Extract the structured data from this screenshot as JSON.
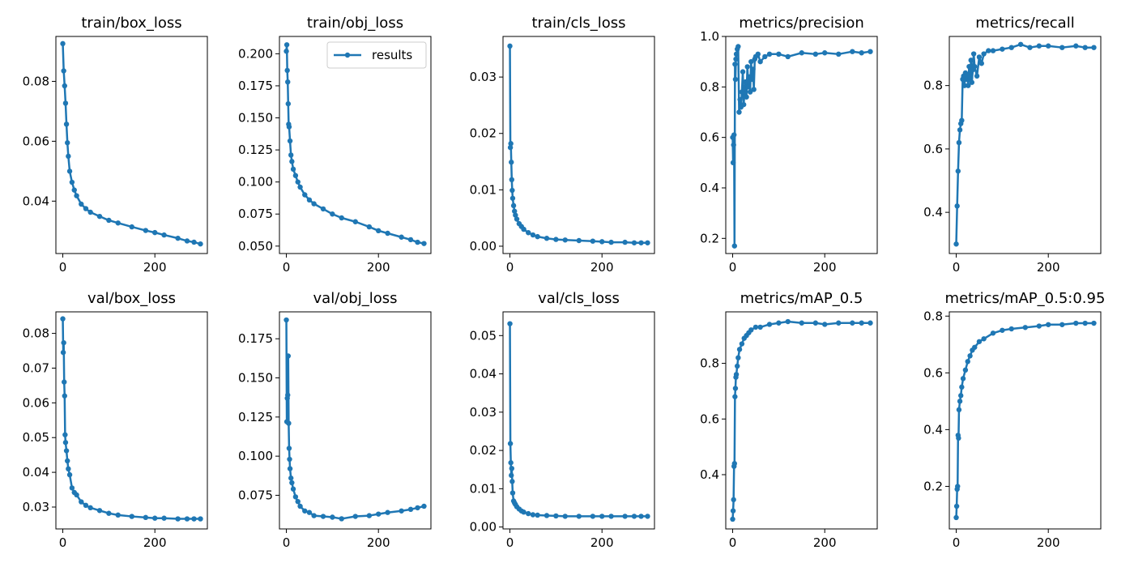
{
  "chart_data": {
    "type": "line",
    "series_color": "#1f77b4",
    "legend": {
      "label": "results",
      "placement": "upper-right",
      "panel_index": 1
    },
    "epochs_max": 299,
    "x_ticks": [
      0,
      200
    ],
    "xlim": [
      -15,
      314
    ],
    "panels": [
      {
        "title": "train/box_loss",
        "ylim": [
          0.0225,
          0.095
        ],
        "y_ticks": [
          0.04,
          0.06,
          0.08
        ],
        "y_tick_labels": [
          "0.04",
          "0.06",
          "0.08"
        ],
        "series": [
          {
            "name": "results",
            "x": [
              0,
              2,
              4,
              6,
              8,
              10,
              12,
              15,
              20,
              25,
              30,
              40,
              50,
              60,
              80,
              100,
              120,
              150,
              180,
              200,
              220,
              250,
              270,
              285,
              299
            ],
            "y": [
              0.0926,
              0.0835,
              0.0785,
              0.0727,
              0.0657,
              0.0595,
              0.055,
              0.05,
              0.0463,
              0.0437,
              0.0418,
              0.039,
              0.0375,
              0.0363,
              0.0349,
              0.0336,
              0.0327,
              0.0314,
              0.0302,
              0.0295,
              0.0287,
              0.0276,
              0.0267,
              0.0263,
              0.0257
            ]
          }
        ]
      },
      {
        "title": "train/obj_loss",
        "ylim": [
          0.0442,
          0.2135
        ],
        "y_ticks": [
          0.05,
          0.075,
          0.1,
          0.125,
          0.15,
          0.175,
          0.2
        ],
        "y_tick_labels": [
          "0.050",
          "0.075",
          "0.100",
          "0.125",
          "0.150",
          "0.175",
          "0.200"
        ],
        "series": [
          {
            "name": "results",
            "x": [
              0,
              1,
              2,
              3,
              4,
              5,
              6,
              8,
              10,
              12,
              15,
              20,
              25,
              30,
              40,
              50,
              60,
              80,
              100,
              120,
              150,
              180,
              200,
              220,
              250,
              270,
              285,
              299
            ],
            "y": [
              0.202,
              0.207,
              0.187,
              0.178,
              0.161,
              0.145,
              0.143,
              0.132,
              0.121,
              0.116,
              0.11,
              0.105,
              0.1,
              0.096,
              0.09,
              0.086,
              0.083,
              0.079,
              0.075,
              0.072,
              0.069,
              0.065,
              0.062,
              0.06,
              0.057,
              0.055,
              0.053,
              0.052
            ]
          }
        ]
      },
      {
        "title": "train/cls_loss",
        "ylim": [
          -0.0013,
          0.0372
        ],
        "y_ticks": [
          0.0,
          0.01,
          0.02,
          0.03
        ],
        "y_tick_labels": [
          "0.00",
          "0.01",
          "0.02",
          "0.03"
        ],
        "series": [
          {
            "name": "results",
            "x": [
              0,
              1,
              2,
              3,
              4,
              5,
              6,
              8,
              10,
              12,
              15,
              20,
              25,
              30,
              40,
              50,
              60,
              80,
              100,
              120,
              150,
              180,
              200,
              220,
              250,
              270,
              285,
              299
            ],
            "y": [
              0.0355,
              0.0175,
              0.0182,
              0.0149,
              0.0118,
              0.0099,
              0.0085,
              0.0072,
              0.0062,
              0.0055,
              0.0048,
              0.004,
              0.0035,
              0.003,
              0.0024,
              0.002,
              0.0017,
              0.0014,
              0.0012,
              0.0011,
              0.001,
              0.0009,
              0.0008,
              0.0007,
              0.0007,
              0.0006,
              0.0006,
              0.0006
            ]
          }
        ]
      },
      {
        "title": "metrics/precision",
        "ylim": [
          0.14,
          1.0
        ],
        "y_ticks": [
          0.2,
          0.4,
          0.6,
          0.8,
          1.0
        ],
        "y_tick_labels": [
          "0.2",
          "0.4",
          "0.6",
          "0.8",
          "1.0"
        ],
        "series": [
          {
            "name": "results",
            "x": [
              0,
              1,
              2,
              3,
              4,
              5,
              6,
              7,
              8,
              10,
              12,
              14,
              16,
              18,
              20,
              22,
              24,
              26,
              28,
              30,
              32,
              34,
              36,
              38,
              40,
              42,
              44,
              46,
              48,
              50,
              55,
              60,
              70,
              80,
              100,
              120,
              150,
              180,
              200,
              230,
              260,
              280,
              299
            ],
            "y": [
              0.6,
              0.5,
              0.57,
              0.61,
              0.17,
              0.89,
              0.83,
              0.91,
              0.93,
              0.95,
              0.96,
              0.7,
              0.75,
              0.72,
              0.78,
              0.86,
              0.73,
              0.79,
              0.82,
              0.76,
              0.88,
              0.8,
              0.84,
              0.78,
              0.9,
              0.83,
              0.87,
              0.79,
              0.91,
              0.92,
              0.93,
              0.9,
              0.92,
              0.93,
              0.93,
              0.92,
              0.935,
              0.93,
              0.935,
              0.93,
              0.94,
              0.935,
              0.94
            ]
          }
        ]
      },
      {
        "title": "metrics/recall",
        "ylim": [
          0.27,
          0.955
        ],
        "y_ticks": [
          0.4,
          0.6,
          0.8
        ],
        "y_tick_labels": [
          "0.4",
          "0.6",
          "0.8"
        ],
        "series": [
          {
            "name": "results",
            "x": [
              0,
              2,
              4,
              6,
              8,
              10,
              12,
              14,
              16,
              18,
              20,
              22,
              24,
              26,
              28,
              30,
              32,
              34,
              36,
              38,
              40,
              45,
              50,
              55,
              60,
              70,
              80,
              100,
              120,
              140,
              160,
              180,
              200,
              230,
              260,
              280,
              299
            ],
            "y": [
              0.3,
              0.42,
              0.53,
              0.62,
              0.66,
              0.68,
              0.69,
              0.82,
              0.83,
              0.8,
              0.84,
              0.82,
              0.83,
              0.8,
              0.86,
              0.82,
              0.88,
              0.81,
              0.85,
              0.9,
              0.86,
              0.83,
              0.89,
              0.87,
              0.9,
              0.91,
              0.91,
              0.915,
              0.92,
              0.93,
              0.92,
              0.925,
              0.925,
              0.92,
              0.925,
              0.92,
              0.92
            ]
          }
        ]
      },
      {
        "title": "val/box_loss",
        "ylim": [
          0.0237,
          0.0862
        ],
        "y_ticks": [
          0.03,
          0.04,
          0.05,
          0.06,
          0.07,
          0.08
        ],
        "y_tick_labels": [
          "0.03",
          "0.04",
          "0.05",
          "0.06",
          "0.07",
          "0.08"
        ],
        "series": [
          {
            "name": "results",
            "x": [
              0,
              1,
              2,
              3,
              4,
              5,
              6,
              8,
              10,
              12,
              15,
              20,
              25,
              30,
              40,
              50,
              60,
              80,
              100,
              120,
              150,
              180,
              200,
              220,
              250,
              270,
              285,
              299
            ],
            "y": [
              0.0842,
              0.0745,
              0.0773,
              0.066,
              0.062,
              0.0508,
              0.0486,
              0.0462,
              0.0433,
              0.041,
              0.0393,
              0.0355,
              0.0342,
              0.0335,
              0.0315,
              0.0305,
              0.0298,
              0.029,
              0.0282,
              0.0277,
              0.0273,
              0.027,
              0.0268,
              0.0268,
              0.0266,
              0.0266,
              0.0266,
              0.0266
            ]
          }
        ]
      },
      {
        "title": "val/obj_loss",
        "ylim": [
          0.0535,
          0.1922
        ],
        "y_ticks": [
          0.075,
          0.1,
          0.125,
          0.15,
          0.175
        ],
        "y_tick_labels": [
          "0.075",
          "0.100",
          "0.125",
          "0.150",
          "0.175"
        ],
        "series": [
          {
            "name": "results",
            "x": [
              0,
              1,
              2,
              3,
              4,
              5,
              6,
              7,
              8,
              10,
              12,
              15,
              20,
              25,
              30,
              40,
              50,
              60,
              80,
              100,
              120,
              150,
              180,
              200,
              220,
              250,
              270,
              285,
              299
            ],
            "y": [
              0.187,
              0.122,
              0.137,
              0.139,
              0.164,
              0.121,
              0.105,
              0.098,
              0.092,
              0.086,
              0.083,
              0.079,
              0.074,
              0.071,
              0.068,
              0.065,
              0.064,
              0.062,
              0.0615,
              0.061,
              0.06,
              0.0615,
              0.062,
              0.063,
              0.064,
              0.065,
              0.066,
              0.067,
              0.068
            ]
          }
        ]
      },
      {
        "title": "val/cls_loss",
        "ylim": [
          -0.0005,
          0.0562
        ],
        "y_ticks": [
          0.0,
          0.01,
          0.02,
          0.03,
          0.04,
          0.05
        ],
        "y_tick_labels": [
          "0.00",
          "0.01",
          "0.02",
          "0.03",
          "0.04",
          "0.05"
        ],
        "series": [
          {
            "name": "results",
            "x": [
              0,
              1,
              2,
              3,
              4,
              5,
              6,
              8,
              10,
              12,
              15,
              20,
              25,
              30,
              40,
              50,
              60,
              80,
              100,
              120,
              150,
              180,
              200,
              220,
              250,
              270,
              285,
              299
            ],
            "y": [
              0.0531,
              0.0218,
              0.0168,
              0.0135,
              0.0153,
              0.0119,
              0.0089,
              0.0068,
              0.0063,
              0.0059,
              0.0053,
              0.0047,
              0.0042,
              0.0039,
              0.0035,
              0.0032,
              0.0031,
              0.003,
              0.0029,
              0.0028,
              0.0028,
              0.0028,
              0.0028,
              0.0028,
              0.0028,
              0.0028,
              0.0028,
              0.0028
            ]
          }
        ]
      },
      {
        "title": "metrics/mAP_0.5",
        "ylim": [
          0.205,
          0.985
        ],
        "y_ticks": [
          0.4,
          0.6,
          0.8
        ],
        "y_tick_labels": [
          "0.4",
          "0.6",
          "0.8"
        ],
        "series": [
          {
            "name": "results",
            "x": [
              0,
              1,
              2,
              3,
              4,
              5,
              6,
              7,
              8,
              10,
              12,
              15,
              20,
              25,
              30,
              35,
              40,
              50,
              60,
              80,
              100,
              120,
              150,
              180,
              200,
              230,
              260,
              280,
              299
            ],
            "y": [
              0.24,
              0.27,
              0.31,
              0.43,
              0.44,
              0.68,
              0.71,
              0.75,
              0.76,
              0.79,
              0.82,
              0.85,
              0.87,
              0.89,
              0.9,
              0.91,
              0.92,
              0.93,
              0.93,
              0.94,
              0.945,
              0.95,
              0.945,
              0.945,
              0.94,
              0.945,
              0.945,
              0.945,
              0.945
            ]
          }
        ]
      },
      {
        "title": "metrics/mAP_0.5:0.95",
        "ylim": [
          0.05,
          0.815
        ],
        "y_ticks": [
          0.2,
          0.4,
          0.6,
          0.8
        ],
        "y_tick_labels": [
          "0.2",
          "0.4",
          "0.6",
          "0.8"
        ],
        "series": [
          {
            "name": "results",
            "x": [
              0,
              1,
              2,
              3,
              4,
              5,
              6,
              8,
              10,
              12,
              15,
              20,
              25,
              30,
              35,
              40,
              50,
              60,
              80,
              100,
              120,
              150,
              180,
              200,
              230,
              260,
              280,
              299
            ],
            "y": [
              0.09,
              0.13,
              0.19,
              0.2,
              0.38,
              0.37,
              0.47,
              0.5,
              0.52,
              0.55,
              0.58,
              0.61,
              0.64,
              0.66,
              0.68,
              0.69,
              0.71,
              0.72,
              0.74,
              0.75,
              0.755,
              0.76,
              0.765,
              0.77,
              0.77,
              0.775,
              0.775,
              0.775
            ]
          }
        ]
      }
    ]
  }
}
